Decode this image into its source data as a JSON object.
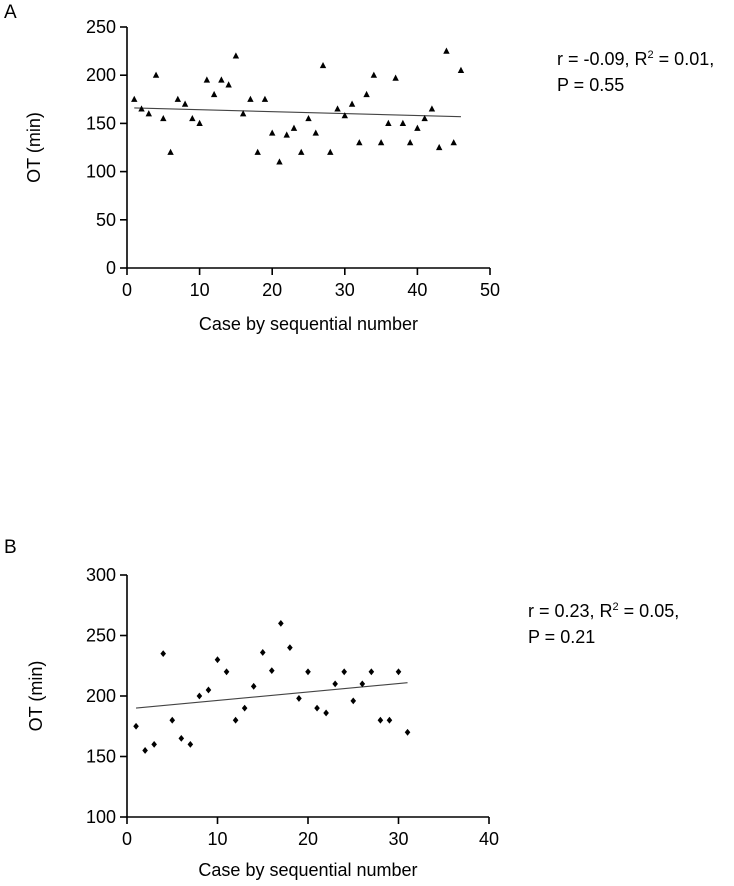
{
  "chart_data": [
    {
      "panel": "A",
      "type": "scatter",
      "marker": "triangle",
      "xlabel": "Case by sequential number",
      "ylabel": "OT (min)",
      "xlim": [
        0,
        50
      ],
      "ylim": [
        0,
        250
      ],
      "xticks": [
        0,
        10,
        20,
        30,
        40,
        50
      ],
      "yticks": [
        0,
        50,
        100,
        150,
        200,
        250
      ],
      "grid": false,
      "points": [
        [
          1,
          175
        ],
        [
          2,
          165
        ],
        [
          3,
          160
        ],
        [
          4,
          200
        ],
        [
          5,
          155
        ],
        [
          6,
          120
        ],
        [
          7,
          175
        ],
        [
          8,
          170
        ],
        [
          9,
          155
        ],
        [
          10,
          150
        ],
        [
          11,
          195
        ],
        [
          12,
          180
        ],
        [
          13,
          195
        ],
        [
          14,
          190
        ],
        [
          15,
          220
        ],
        [
          16,
          160
        ],
        [
          17,
          175
        ],
        [
          18,
          120
        ],
        [
          19,
          175
        ],
        [
          20,
          140
        ],
        [
          21,
          110
        ],
        [
          22,
          138
        ],
        [
          23,
          145
        ],
        [
          24,
          120
        ],
        [
          25,
          155
        ],
        [
          26,
          140
        ],
        [
          27,
          210
        ],
        [
          28,
          120
        ],
        [
          29,
          165
        ],
        [
          30,
          158
        ],
        [
          31,
          170
        ],
        [
          32,
          130
        ],
        [
          33,
          180
        ],
        [
          34,
          200
        ],
        [
          35,
          130
        ],
        [
          36,
          150
        ],
        [
          37,
          197
        ],
        [
          38,
          150
        ],
        [
          39,
          130
        ],
        [
          40,
          145
        ],
        [
          41,
          155
        ],
        [
          42,
          165
        ],
        [
          43,
          125
        ],
        [
          44,
          225
        ],
        [
          45,
          130
        ],
        [
          46,
          205
        ]
      ],
      "trendline": {
        "x": [
          1,
          46
        ],
        "y": [
          166,
          157
        ]
      },
      "stats": {
        "line1": "r = -0.09, R",
        "sup": "2",
        "line1_end": " = 0.01,",
        "line2": "P = 0.55"
      }
    },
    {
      "panel": "B",
      "type": "scatter",
      "marker": "diamond",
      "xlabel": "Case by sequential number",
      "ylabel": "OT (min)",
      "xlim": [
        0,
        40
      ],
      "ylim": [
        100,
        300
      ],
      "xticks": [
        0,
        10,
        20,
        30,
        40
      ],
      "yticks": [
        100,
        150,
        200,
        250,
        300
      ],
      "grid": false,
      "points": [
        [
          1,
          175
        ],
        [
          2,
          155
        ],
        [
          3,
          160
        ],
        [
          4,
          235
        ],
        [
          5,
          180
        ],
        [
          6,
          165
        ],
        [
          7,
          160
        ],
        [
          8,
          200
        ],
        [
          9,
          205
        ],
        [
          10,
          230
        ],
        [
          11,
          220
        ],
        [
          12,
          180
        ],
        [
          13,
          190
        ],
        [
          14,
          208
        ],
        [
          15,
          236
        ],
        [
          16,
          221
        ],
        [
          17,
          260
        ],
        [
          18,
          240
        ],
        [
          19,
          198
        ],
        [
          20,
          220
        ],
        [
          21,
          190
        ],
        [
          22,
          186
        ],
        [
          23,
          210
        ],
        [
          24,
          220
        ],
        [
          25,
          196
        ],
        [
          26,
          210
        ],
        [
          27,
          220
        ],
        [
          28,
          180
        ],
        [
          29,
          180
        ],
        [
          30,
          220
        ],
        [
          31,
          170
        ]
      ],
      "trendline": {
        "x": [
          1,
          31
        ],
        "y": [
          190,
          211
        ]
      },
      "stats": {
        "line1": "r = 0.23, R",
        "sup": "2",
        "line1_end": " = 0.05,",
        "line2": "P = 0.21"
      }
    }
  ]
}
